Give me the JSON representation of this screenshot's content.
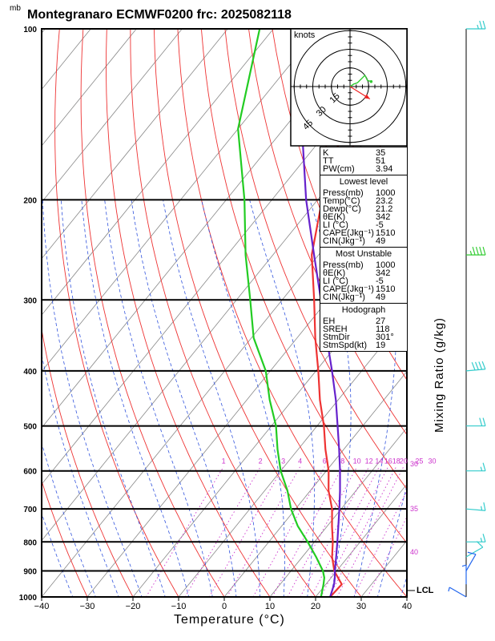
{
  "title": "Montegranaro ECMWF0200 frc: 2025082118",
  "pressure_unit": "mb",
  "x_axis_label": "Temperature (°C)",
  "right_axis_label": "Mixing Ratio (g/kg)",
  "lcl_label": "LCL",
  "hodograph": {
    "unit_label": "knots",
    "ring_labels": [
      "15",
      "30",
      "45"
    ]
  },
  "indices": {
    "top": [
      {
        "label": "K",
        "value": "35"
      },
      {
        "label": "TT",
        "value": "51"
      },
      {
        "label": "PW(cm)",
        "value": "3.94"
      }
    ],
    "lowest_level": {
      "header": "Lowest level",
      "rows": [
        {
          "label": "Press(mb)",
          "value": "1000"
        },
        {
          "label": "Temp(°C)",
          "value": "23.2"
        },
        {
          "label": "Dewp(°C)",
          "value": "21.2"
        },
        {
          "label": "θE(K)",
          "value": "342"
        },
        {
          "label": "LI (°C)",
          "value": "-5"
        },
        {
          "label": "CAPE(Jkg⁻¹)",
          "value": "1510"
        },
        {
          "label": "CIN(Jkg⁻¹)",
          "value": "49"
        }
      ]
    },
    "most_unstable": {
      "header": "Most Unstable",
      "rows": [
        {
          "label": "Press(mb)",
          "value": "1000"
        },
        {
          "label": "θE(K)",
          "value": "342"
        },
        {
          "label": "LI (°C)",
          "value": "-5"
        },
        {
          "label": "CAPE(Jkg⁻¹)",
          "value": "1510"
        },
        {
          "label": "CIN(Jkg⁻¹)",
          "value": "49"
        }
      ]
    },
    "hodograph_params": {
      "header": "Hodograph",
      "rows": [
        {
          "label": "EH",
          "value": "27"
        },
        {
          "label": "SREH",
          "value": "118"
        },
        {
          "label": "StmDir",
          "value": "301°"
        },
        {
          "label": "StmSpd(kt)",
          "value": "19"
        }
      ]
    }
  },
  "chart_data": {
    "type": "line",
    "subtype": "skew-T log-p sounding",
    "x_label": "Temperature (°C)",
    "x_ticks": [
      -40,
      -30,
      -20,
      -10,
      0,
      10,
      20,
      30,
      40
    ],
    "xlim": [
      -40,
      40
    ],
    "y_label": "mb",
    "y_scale": "log",
    "y_ticks": [
      100,
      200,
      300,
      400,
      500,
      600,
      700,
      800,
      900,
      1000
    ],
    "ylim": [
      1000,
      100
    ],
    "mixing_ratio_labels": [
      "1",
      "2",
      "3",
      "4",
      "6",
      "8",
      "10",
      "12",
      "14",
      "16",
      "18",
      "20",
      "25",
      "30"
    ],
    "right_side_labels": [
      "30",
      "35",
      "40"
    ],
    "series": [
      {
        "color": "#ee3333",
        "pressure": [
          1000,
          950,
          925,
          900,
          850,
          800,
          750,
          700,
          650,
          600,
          550,
          500,
          450,
          400,
          350,
          300,
          250,
          200,
          150,
          100
        ],
        "value": [
          23.2,
          23.5,
          21.5,
          19.5,
          16.5,
          14.0,
          11.0,
          8.0,
          4.0,
          0.5,
          -4.0,
          -8.5,
          -14.0,
          -19.5,
          -26.0,
          -33.0,
          -41.5,
          -49.0,
          -57.0,
          -65.0
        ]
      },
      {
        "color": "#22cc22",
        "pressure": [
          1000,
          950,
          925,
          900,
          850,
          800,
          750,
          700,
          650,
          600,
          550,
          500,
          450,
          400,
          350,
          300,
          250,
          200,
          150,
          100
        ],
        "value": [
          21.2,
          19.5,
          18.5,
          17.0,
          13.0,
          8.5,
          3.5,
          -1.0,
          -5.0,
          -10.0,
          -14.5,
          -19.0,
          -25.0,
          -31.0,
          -39.5,
          -47.0,
          -56.0,
          -66.0,
          -80.0,
          -93.0
        ]
      },
      {
        "color": "#6622cc",
        "pressure": [
          1000,
          950,
          925,
          900,
          850,
          800,
          750,
          700,
          650,
          600,
          550,
          500,
          450,
          400,
          350,
          300,
          250,
          200,
          150,
          100
        ],
        "value": [
          23.2,
          21.8,
          20.8,
          19.6,
          17.4,
          15.0,
          12.4,
          9.6,
          6.5,
          3.0,
          -1.0,
          -5.5,
          -10.5,
          -16.5,
          -23.5,
          -31.5,
          -41.0,
          -52.5,
          -66.0,
          -82.0
        ]
      }
    ],
    "wind_barbs": [
      {
        "pressure": 100,
        "speed_kt": 25,
        "direction_deg": 270
      },
      {
        "pressure": 250,
        "speed_kt": 45,
        "direction_deg": 270
      },
      {
        "pressure": 400,
        "speed_kt": 40,
        "direction_deg": 265
      },
      {
        "pressure": 500,
        "speed_kt": 20,
        "direction_deg": 270
      },
      {
        "pressure": 600,
        "speed_kt": 15,
        "direction_deg": 270
      },
      {
        "pressure": 700,
        "speed_kt": 15,
        "direction_deg": 275
      },
      {
        "pressure": 800,
        "speed_kt": 15,
        "direction_deg": 270
      },
      {
        "pressure": 850,
        "speed_kt": 10,
        "direction_deg": 240
      },
      {
        "pressure": 900,
        "speed_kt": 10,
        "direction_deg": 210
      },
      {
        "pressure": 950,
        "speed_kt": 5,
        "direction_deg": 180
      },
      {
        "pressure": 1000,
        "speed_kt": 5,
        "direction_deg": 120
      }
    ],
    "hodograph_trace_kt": [
      {
        "u": 0,
        "v": 0
      },
      {
        "u": 3,
        "v": 2
      },
      {
        "u": 6,
        "v": 3
      },
      {
        "u": 9,
        "v": 6
      },
      {
        "u": 12,
        "v": 9
      },
      {
        "u": 14,
        "v": 5
      },
      {
        "u": 17,
        "v": 4
      }
    ],
    "storm_motion_kt": {
      "u": 16,
      "v": -10
    }
  },
  "colors": {
    "isotherm": "#888888",
    "dry_adiabat": "#ee3333",
    "moist_adiabat": "#3355dd",
    "mixing_ratio": "#cc33cc",
    "wind_upper": "#33cccc",
    "wind_mid": "#33cc33",
    "wind_low": "#2266ee"
  }
}
